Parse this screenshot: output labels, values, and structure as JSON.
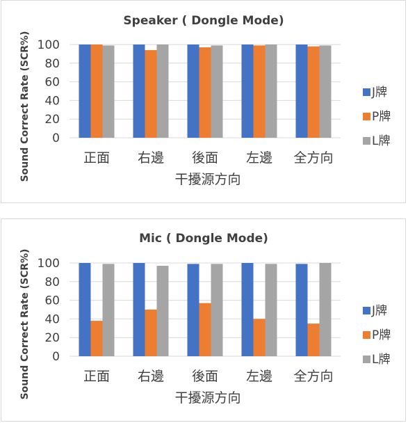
{
  "chart_data": [
    {
      "type": "bar",
      "title": "Speaker ( Dongle Mode)",
      "xlabel": "干擾源方向",
      "ylabel": "Sound Correct Rate (SCR%)",
      "categories": [
        "正面",
        "右邊",
        "後面",
        "左邊",
        "全方向"
      ],
      "ylim": [
        0,
        100
      ],
      "yticks": [
        0,
        20,
        40,
        60,
        80,
        100
      ],
      "grid": true,
      "legend_position": "right",
      "series": [
        {
          "name": "J牌",
          "color": "#4472C4",
          "values": [
            100,
            100,
            100,
            100,
            100
          ]
        },
        {
          "name": "P牌",
          "color": "#ED7D31",
          "values": [
            100,
            94,
            97,
            99,
            98
          ]
        },
        {
          "name": "L牌",
          "color": "#A5A5A5",
          "values": [
            99,
            100,
            99,
            100,
            99
          ]
        }
      ]
    },
    {
      "type": "bar",
      "title": "Mic ( Dongle Mode)",
      "xlabel": "干擾源方向",
      "ylabel": "Sound Correct Rate (SCR%)",
      "categories": [
        "正面",
        "右邊",
        "後面",
        "左邊",
        "全方向"
      ],
      "ylim": [
        0,
        100
      ],
      "yticks": [
        0,
        20,
        40,
        60,
        80,
        100
      ],
      "grid": true,
      "legend_position": "right",
      "series": [
        {
          "name": "J牌",
          "color": "#4472C4",
          "values": [
            100,
            100,
            99,
            100,
            99
          ]
        },
        {
          "name": "P牌",
          "color": "#ED7D31",
          "values": [
            38,
            50,
            57,
            40,
            35
          ]
        },
        {
          "name": "L牌",
          "color": "#A5A5A5",
          "values": [
            99,
            97,
            99,
            99,
            100
          ]
        }
      ]
    }
  ]
}
